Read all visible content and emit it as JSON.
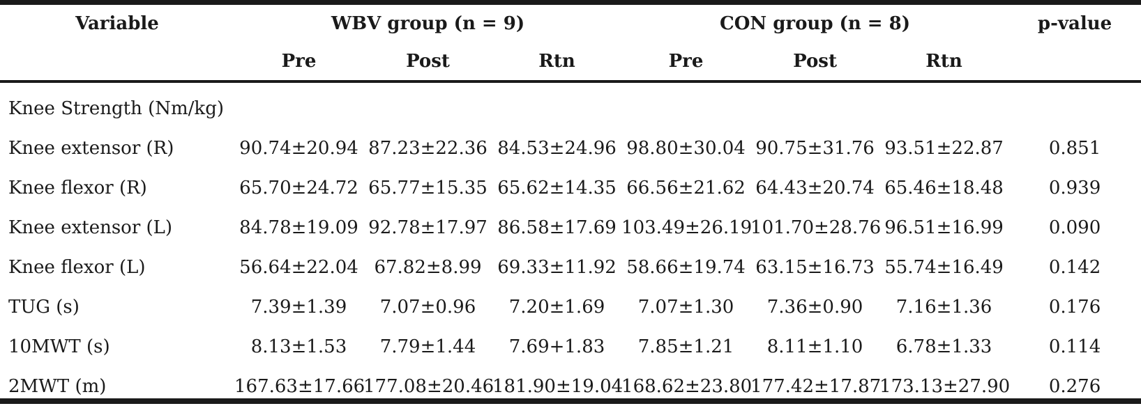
{
  "header": {
    "variable": "Variable",
    "group1": "WBV group (n = 9)",
    "group2": "CON group (n = 8)",
    "pvalue": "p-value",
    "sub": [
      "Pre",
      "Post",
      "Rtn",
      "Pre",
      "Post",
      "Rtn"
    ]
  },
  "section": "Knee Strength (Nm/kg)",
  "rows": [
    {
      "label": "Knee extensor (R)",
      "values": [
        "90.74±20.94",
        "87.23±22.36",
        "84.53±24.96",
        "98.80±30.04",
        "90.75±31.76",
        "93.51±22.87"
      ],
      "p": "0.851"
    },
    {
      "label": "Knee flexor (R)",
      "values": [
        "65.70±24.72",
        "65.77±15.35",
        "65.62±14.35",
        "66.56±21.62",
        "64.43±20.74",
        "65.46±18.48"
      ],
      "p": "0.939"
    },
    {
      "label": "Knee extensor (L)",
      "values": [
        "84.78±19.09",
        "92.78±17.97",
        "86.58±17.69",
        "103.49±26.19",
        "101.70±28.76",
        "96.51±16.99"
      ],
      "p": "0.090"
    },
    {
      "label": "Knee flexor (L)",
      "values": [
        "56.64±22.04",
        "67.82±8.99",
        "69.33±11.92",
        "58.66±19.74",
        "63.15±16.73",
        "55.74±16.49"
      ],
      "p": "0.142"
    },
    {
      "label": "TUG (s)",
      "values": [
        "7.39±1.39",
        "7.07±0.96",
        "7.20±1.69",
        "7.07±1.30",
        "7.36±0.90",
        "7.16±1.36"
      ],
      "p": "0.176"
    },
    {
      "label": "10MWT (s)",
      "values": [
        "8.13±1.53",
        "7.79±1.44",
        "7.69+1.83",
        "7.85±1.21",
        "8.11±1.10",
        "6.78±1.33"
      ],
      "p": "0.114"
    },
    {
      "label": "2MWT (m)",
      "values": [
        "167.63±17.66",
        "177.08±20.46",
        "181.90±19.04",
        "168.62±23.80",
        "177.42±17.87",
        "173.13±27.90"
      ],
      "p": "0.276"
    }
  ]
}
